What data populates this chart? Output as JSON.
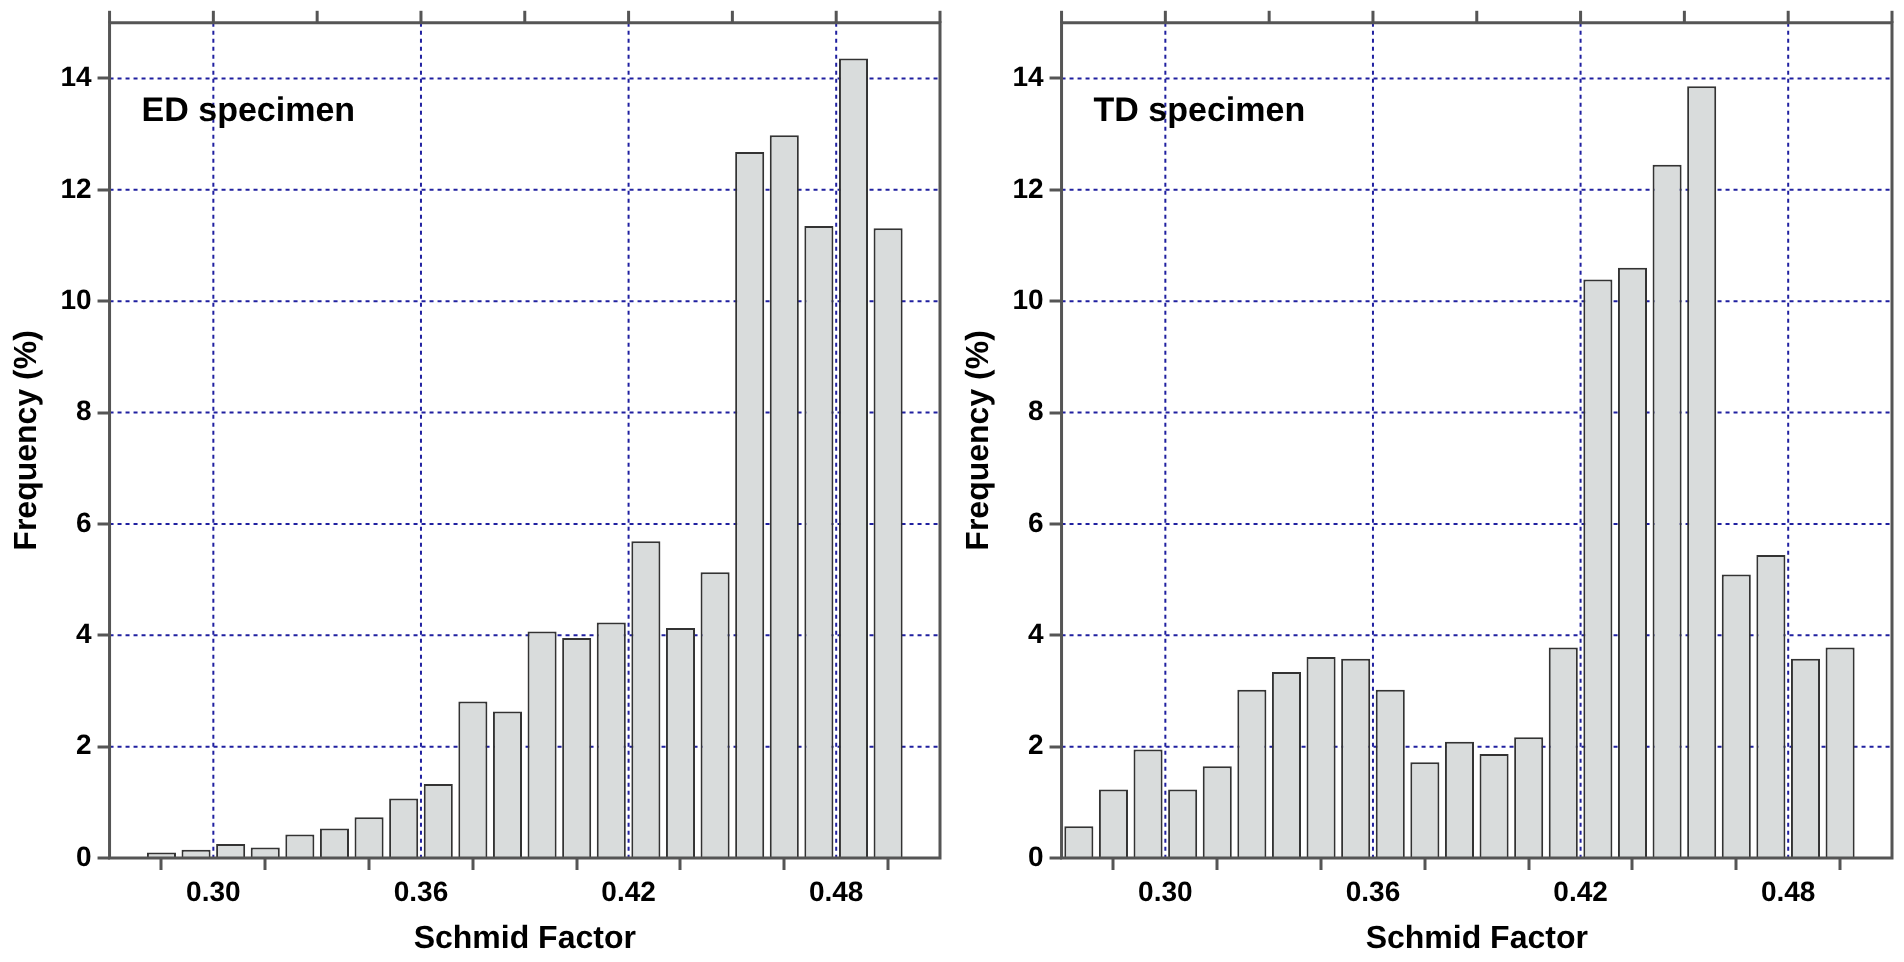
{
  "chart_data": [
    {
      "type": "histogram",
      "annotations": [
        "ED specimen"
      ],
      "xlabel": "Schmid Factor",
      "ylabel": "Frequency (%)",
      "color": "#d9dcdc",
      "bins": [
        0.28,
        0.29,
        0.3,
        0.31,
        0.32,
        0.33,
        0.34,
        0.35,
        0.36,
        0.37,
        0.38,
        0.39,
        0.4,
        0.41,
        0.42,
        0.43,
        0.44,
        0.45,
        0.46,
        0.47,
        0.48,
        0.49,
        0.5
      ],
      "values": [
        0.1,
        0.15,
        0.25,
        0.19,
        0.42,
        0.53,
        0.73,
        1.07,
        1.33,
        2.81,
        2.63,
        4.07,
        3.95,
        4.23,
        5.69,
        4.13,
        5.13,
        12.68,
        12.98,
        11.35,
        14.36,
        11.31
      ],
      "xlim": [
        0.27,
        0.51
      ],
      "xticks": [
        {
          "value": 0.27,
          "label": null
        },
        {
          "value": 0.3,
          "label": "0.30"
        },
        {
          "value": 0.33,
          "label": null
        },
        {
          "value": 0.36,
          "label": "0.36"
        },
        {
          "value": 0.39,
          "label": null
        },
        {
          "value": 0.42,
          "label": "0.42"
        },
        {
          "value": 0.45,
          "label": null
        },
        {
          "value": 0.48,
          "label": "0.48"
        },
        {
          "value": 0.51,
          "label": null
        }
      ],
      "ylim": [
        0,
        15
      ],
      "yticks": [
        0,
        2,
        4,
        6,
        8,
        10,
        12,
        14
      ],
      "grid": true
    },
    {
      "type": "histogram",
      "annotations": [
        "TD specimen"
      ],
      "xlabel": "Schmid Factor",
      "ylabel": "Frequency (%)",
      "color": "#d9dcdc",
      "bins": [
        0.27,
        0.28,
        0.29,
        0.3,
        0.31,
        0.32,
        0.33,
        0.34,
        0.35,
        0.36,
        0.37,
        0.38,
        0.39,
        0.4,
        0.41,
        0.42,
        0.43,
        0.44,
        0.45,
        0.46,
        0.47,
        0.48,
        0.49,
        0.5
      ],
      "values": [
        0.57,
        1.23,
        1.95,
        1.23,
        1.65,
        3.02,
        3.34,
        3.61,
        3.58,
        3.02,
        1.72,
        2.09,
        1.87,
        2.17,
        3.78,
        10.39,
        10.6,
        12.45,
        13.86,
        5.09,
        5.44,
        3.58,
        3.78
      ],
      "xlim": [
        0.27,
        0.51
      ],
      "xticks": [
        {
          "value": 0.27,
          "label": null
        },
        {
          "value": 0.3,
          "label": "0.30"
        },
        {
          "value": 0.33,
          "label": null
        },
        {
          "value": 0.36,
          "label": "0.36"
        },
        {
          "value": 0.39,
          "label": null
        },
        {
          "value": 0.42,
          "label": "0.42"
        },
        {
          "value": 0.45,
          "label": null
        },
        {
          "value": 0.48,
          "label": "0.48"
        },
        {
          "value": 0.51,
          "label": null
        }
      ],
      "ylim": [
        0,
        15
      ],
      "yticks": [
        0,
        2,
        4,
        6,
        8,
        10,
        12,
        14
      ],
      "grid": true
    }
  ]
}
